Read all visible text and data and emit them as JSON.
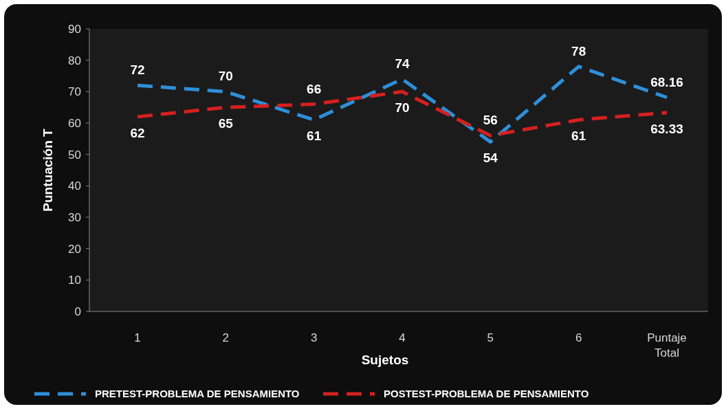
{
  "chart_data": {
    "type": "line",
    "xlabel": "Sujetos",
    "ylabel": "Puntuación T",
    "categories": [
      "1",
      "2",
      "3",
      "4",
      "5",
      "6",
      "Puntaje Total"
    ],
    "series": [
      {
        "name": "PRETEST-PROBLEMA DE PENSAMIENTO",
        "color": "#2e8fd8",
        "values": [
          72,
          70,
          61,
          74,
          54,
          78,
          68.16
        ]
      },
      {
        "name": "POSTEST-PROBLEMA DE PENSAMIENTO",
        "color": "#d42020",
        "values": [
          62,
          65,
          66,
          70,
          56,
          61,
          63.33
        ]
      }
    ],
    "ylim": [
      0,
      90
    ],
    "yticks": [
      0,
      10,
      20,
      30,
      40,
      50,
      60,
      70,
      80,
      90
    ],
    "grid": false,
    "legend": "bottom",
    "data_labels": true,
    "line_style": "dashed",
    "marker": "none"
  }
}
